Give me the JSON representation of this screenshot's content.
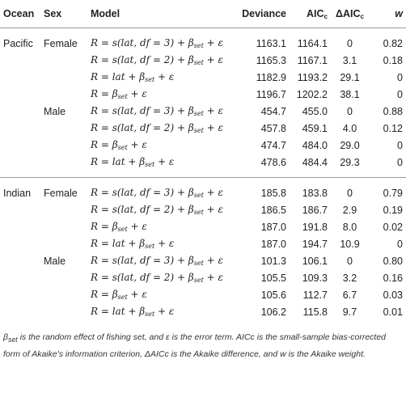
{
  "table": {
    "headers": {
      "ocean": "Ocean",
      "sex": "Sex",
      "model": "Model",
      "deviance": "Deviance",
      "aic": "AIC",
      "aic_sub": "c",
      "daic": "ΔAIC",
      "daic_sub": "c",
      "w": "w"
    },
    "rows": [
      {
        "ocean": "Pacific",
        "sex": "Female",
        "model": "R = s(lat, df = 3) + β",
        "model_sub": "set",
        "model_tail": " + ε",
        "deviance": "1163.1",
        "aic": "1164.1",
        "daic": "0",
        "w": "0.82"
      },
      {
        "ocean": "",
        "sex": "",
        "model": "R = s(lat, df = 2) + β",
        "model_sub": "set",
        "model_tail": " + ε",
        "deviance": "1165.3",
        "aic": "1167.1",
        "daic": "3.1",
        "w": "0.18"
      },
      {
        "ocean": "",
        "sex": "",
        "model": "R = lat + β",
        "model_sub": "set",
        "model_tail": " + ε",
        "deviance": "1182.9",
        "aic": "1193.2",
        "daic": "29.1",
        "w": "0"
      },
      {
        "ocean": "",
        "sex": "",
        "model": "R = β",
        "model_sub": "set",
        "model_tail": " + ε",
        "deviance": "1196.7",
        "aic": "1202.2",
        "daic": "38.1",
        "w": "0"
      },
      {
        "ocean": "",
        "sex": "Male",
        "model": "R = s(lat, df = 3) + β",
        "model_sub": "set",
        "model_tail": " + ε",
        "deviance": "454.7",
        "aic": "455.0",
        "daic": "0",
        "w": "0.88"
      },
      {
        "ocean": "",
        "sex": "",
        "model": "R = s(lat, df = 2) + β",
        "model_sub": "set",
        "model_tail": " + ε",
        "deviance": "457.8",
        "aic": "459.1",
        "daic": "4.0",
        "w": "0.12"
      },
      {
        "ocean": "",
        "sex": "",
        "model": "R = β",
        "model_sub": "set",
        "model_tail": " + ε",
        "deviance": "474.7",
        "aic": "484.0",
        "daic": "29.0",
        "w": "0"
      },
      {
        "ocean": "",
        "sex": "",
        "model": "R = lat + β",
        "model_sub": "set",
        "model_tail": " + ε",
        "deviance": "478.6",
        "aic": "484.4",
        "daic": "29.3",
        "w": "0"
      },
      {
        "ocean": "Indian",
        "sex": "Female",
        "model": "R = s(lat, df = 3) + β",
        "model_sub": "set",
        "model_tail": " + ε",
        "deviance": "185.8",
        "aic": "183.8",
        "daic": "0",
        "w": "0.79"
      },
      {
        "ocean": "",
        "sex": "",
        "model": "R = s(lat, df = 2) + β",
        "model_sub": "set",
        "model_tail": " + ε",
        "deviance": "186.5",
        "aic": "186.7",
        "daic": "2.9",
        "w": "0.19"
      },
      {
        "ocean": "",
        "sex": "",
        "model": "R = β",
        "model_sub": "set",
        "model_tail": " + ε",
        "deviance": "187.0",
        "aic": "191.8",
        "daic": "8.0",
        "w": "0.02"
      },
      {
        "ocean": "",
        "sex": "",
        "model": "R = lat + β",
        "model_sub": "set",
        "model_tail": " + ε",
        "deviance": "187.0",
        "aic": "194.7",
        "daic": "10.9",
        "w": "0"
      },
      {
        "ocean": "",
        "sex": "Male",
        "model": "R = s(lat, df = 3) + β",
        "model_sub": "set",
        "model_tail": " + ε",
        "deviance": "101.3",
        "aic": "106.1",
        "daic": "0",
        "w": "0.80"
      },
      {
        "ocean": "",
        "sex": "",
        "model": "R = s(lat, df = 2) + β",
        "model_sub": "set",
        "model_tail": " + ε",
        "deviance": "105.5",
        "aic": "109.3",
        "daic": "3.2",
        "w": "0.16"
      },
      {
        "ocean": "",
        "sex": "",
        "model": "R = β",
        "model_sub": "set",
        "model_tail": " + ε",
        "deviance": "105.6",
        "aic": "112.7",
        "daic": "6.7",
        "w": "0.03"
      },
      {
        "ocean": "",
        "sex": "",
        "model": "R = lat + β",
        "model_sub": "set",
        "model_tail": " + ε",
        "deviance": "106.2",
        "aic": "115.8",
        "daic": "9.7",
        "w": "0.01"
      }
    ]
  },
  "footnote": {
    "beta": "β",
    "beta_sub": "set",
    "text": " is the random effect of fishing set, and ε is the error term. AICc is the small-sample bias-corrected form of Akaike's information criterion, ΔAICc is the Akaike difference, and w is the Akaike weight."
  }
}
